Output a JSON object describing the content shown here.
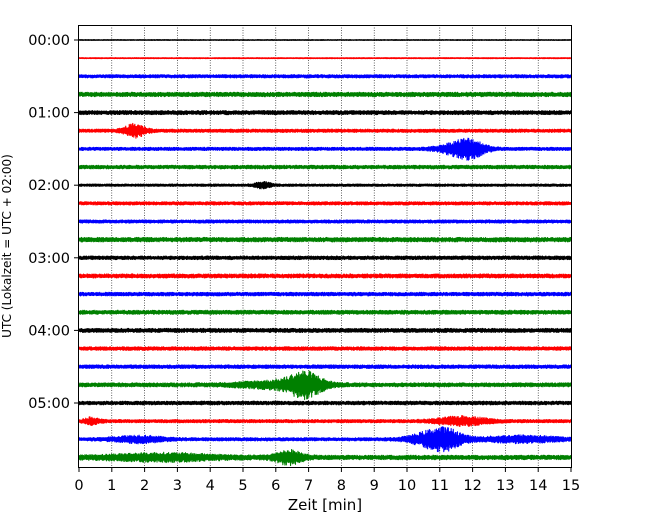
{
  "chart_data": {
    "type": "line",
    "xlabel": "Zeit  [min]",
    "ylabel": "UTC (Lokalzeit = UTC + 02:00)",
    "xlim": [
      0,
      15
    ],
    "x_ticks": [
      "0",
      "1",
      "2",
      "3",
      "4",
      "5",
      "6",
      "7",
      "8",
      "9",
      "10",
      "11",
      "12",
      "13",
      "14",
      "15"
    ],
    "y_tick_labels": [
      "00:00",
      "01:00",
      "02:00",
      "03:00",
      "04:00",
      "05:00"
    ],
    "y_tick_rows": [
      0,
      4,
      8,
      12,
      16,
      20
    ],
    "rows_per_hour": 4,
    "minutes_per_row": 15,
    "grid_x": true,
    "series_colors": [
      "#000000",
      "#ff0000",
      "#0000ff",
      "#008000"
    ],
    "traces": [
      {
        "start": "00:00",
        "noise": 0.4,
        "events": []
      },
      {
        "start": "00:15",
        "noise": 0.5,
        "events": []
      },
      {
        "start": "00:30",
        "noise": 1.6,
        "events": []
      },
      {
        "start": "00:45",
        "noise": 2.2,
        "events": []
      },
      {
        "start": "01:00",
        "noise": 2.0,
        "events": []
      },
      {
        "start": "01:15",
        "noise": 1.6,
        "events": [
          {
            "t": 1.7,
            "w": 0.35,
            "a": 6
          }
        ]
      },
      {
        "start": "01:30",
        "noise": 1.6,
        "events": [
          {
            "t": 11.9,
            "w": 0.5,
            "a": 9
          },
          {
            "t": 11.3,
            "w": 0.5,
            "a": 3
          }
        ]
      },
      {
        "start": "01:45",
        "noise": 1.8,
        "events": []
      },
      {
        "start": "02:00",
        "noise": 1.2,
        "events": [
          {
            "t": 5.6,
            "w": 0.25,
            "a": 3
          }
        ]
      },
      {
        "start": "02:15",
        "noise": 1.6,
        "events": []
      },
      {
        "start": "02:30",
        "noise": 1.6,
        "events": []
      },
      {
        "start": "02:45",
        "noise": 2.2,
        "events": []
      },
      {
        "start": "03:00",
        "noise": 1.8,
        "events": []
      },
      {
        "start": "03:15",
        "noise": 2.0,
        "events": []
      },
      {
        "start": "03:30",
        "noise": 1.8,
        "events": []
      },
      {
        "start": "03:45",
        "noise": 2.0,
        "events": []
      },
      {
        "start": "04:00",
        "noise": 2.0,
        "events": []
      },
      {
        "start": "04:15",
        "noise": 1.8,
        "events": []
      },
      {
        "start": "04:30",
        "noise": 1.8,
        "events": []
      },
      {
        "start": "04:45",
        "noise": 2.0,
        "events": [
          {
            "t": 6.9,
            "w": 0.55,
            "a": 11
          },
          {
            "t": 6.0,
            "w": 1.2,
            "a": 3
          }
        ]
      },
      {
        "start": "05:00",
        "noise": 1.8,
        "events": []
      },
      {
        "start": "05:15",
        "noise": 1.6,
        "events": [
          {
            "t": 0.4,
            "w": 0.25,
            "a": 3
          },
          {
            "t": 11.7,
            "w": 0.8,
            "a": 4
          }
        ]
      },
      {
        "start": "05:30",
        "noise": 1.6,
        "events": [
          {
            "t": 11.2,
            "w": 0.55,
            "a": 9
          },
          {
            "t": 10.6,
            "w": 0.6,
            "a": 5
          },
          {
            "t": 1.8,
            "w": 0.8,
            "a": 3
          },
          {
            "t": 13.5,
            "w": 1.2,
            "a": 3
          }
        ]
      },
      {
        "start": "05:45",
        "noise": 2.2,
        "events": [
          {
            "t": 6.4,
            "w": 0.45,
            "a": 6
          },
          {
            "t": 2.5,
            "w": 1.8,
            "a": 3
          }
        ]
      }
    ]
  }
}
